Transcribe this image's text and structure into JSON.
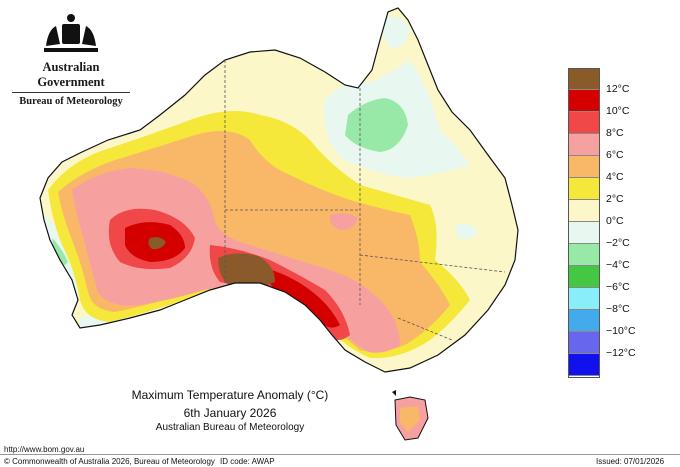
{
  "government": {
    "title": "Australian Government",
    "subtitle": "Bureau of Meteorology"
  },
  "map": {
    "caption_title": "Maximum Temperature Anomaly (°C)",
    "caption_date": "6th January 2026",
    "caption_source": "Australian Bureau of Meteorology"
  },
  "legend": [
    {
      "label": "12°C",
      "color": "#8b5a2b"
    },
    {
      "label": "10°C",
      "color": "#d40000"
    },
    {
      "label": "8°C",
      "color": "#f04848"
    },
    {
      "label": "6°C",
      "color": "#f7a0a0"
    },
    {
      "label": "4°C",
      "color": "#f8b868"
    },
    {
      "label": "2°C",
      "color": "#f5e83a"
    },
    {
      "label": "0°C",
      "color": "#fbf7c8"
    },
    {
      "label": "−2°C",
      "color": "#e8f8f0"
    },
    {
      "label": "−4°C",
      "color": "#98e8a8"
    },
    {
      "label": "−6°C",
      "color": "#44c844"
    },
    {
      "label": "−8°C",
      "color": "#8aeef8"
    },
    {
      "label": "−10°C",
      "color": "#44aaee"
    },
    {
      "label": "−12°C",
      "color": "#6666ee"
    },
    {
      "label": "",
      "color": "#1111ee"
    }
  ],
  "footer": {
    "url": "http://www.bom.gov.au",
    "copyright": "© Commonwealth of Australia 2026, Bureau of Meteorology",
    "id_code": "ID code: AWAP",
    "issued": "Issued: 07/01/2026"
  }
}
